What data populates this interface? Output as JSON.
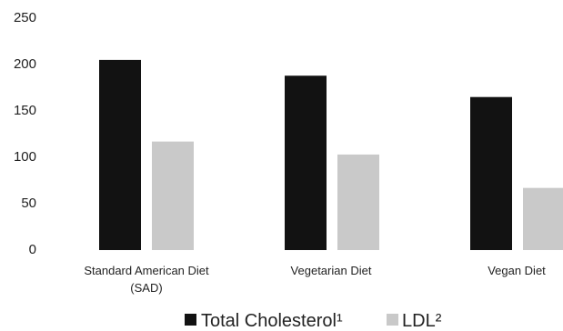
{
  "chart_data": {
    "type": "bar",
    "title": "",
    "xlabel": "",
    "ylabel": "",
    "categories": [
      [
        "Standard American Diet",
        "(SAD)"
      ],
      [
        "Vegetarian Diet"
      ],
      [
        "Vegan Diet"
      ]
    ],
    "series": [
      {
        "name": "Total Cholesterol¹",
        "values": [
          205,
          188,
          165
        ],
        "color": "#121212"
      },
      {
        "name": "LDL²",
        "values": [
          117,
          103,
          67
        ],
        "color": "#c9c9c9"
      }
    ],
    "ylim": [
      0,
      250
    ],
    "yticks": [
      0,
      50,
      100,
      150,
      200,
      250
    ],
    "grid": false,
    "legend": "bottom-center"
  }
}
